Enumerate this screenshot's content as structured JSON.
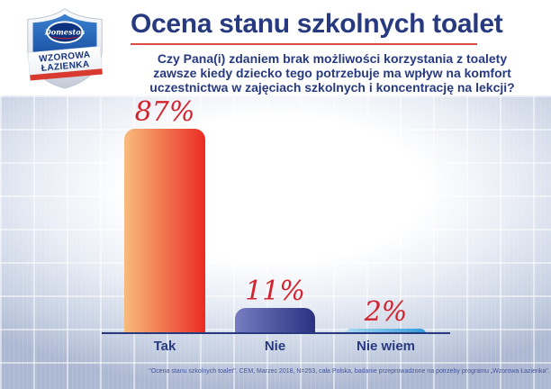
{
  "logo": {
    "brand": "Domestos",
    "program_line1": "WZOROWA",
    "program_line2": "ŁAZIENKA"
  },
  "header": {
    "title": "Ocena stanu szkolnych toalet",
    "subtitle_lines": [
      "Czy Pana(i) zdaniem brak możliwości korzystania z toalety",
      "zawsze kiedy dziecko tego potrzebuje ma wpływ na komfort",
      "uczestnictwa w zajęciach szkolnych i koncentrację na lekcji?"
    ]
  },
  "chart_data": {
    "type": "bar",
    "title": "Ocena stanu szkolnych toalet",
    "categories": [
      "Tak",
      "Nie",
      "Nie wiem"
    ],
    "values": [
      87,
      11,
      2
    ],
    "value_labels": [
      "87%",
      "11%",
      "2%"
    ],
    "xlabel": "",
    "ylabel": "",
    "ylim": [
      0,
      100
    ],
    "grid": false,
    "legend": false,
    "bar_colors": [
      {
        "from": "#f8bb7d",
        "to": "#ea2c23"
      },
      {
        "from": "#767dc1",
        "to": "#2a3180"
      },
      {
        "from": "#a5d9f3",
        "to": "#2f9ad7"
      }
    ],
    "value_label_color": "#d2232e",
    "category_label_color": "#273a80",
    "axis_color": "#273a80"
  },
  "footer": {
    "source": "\"Ocena stanu szkolnych toalet\", CEM, Marzec 2018, N=253, cała Polska, badanie przeprowadzone na potrzeby programu „Wzorowa Łazienka\"."
  },
  "theme": {
    "navy": "#273a80",
    "accent_red": "#dc4a41",
    "tile_background": "#b6c1d7"
  }
}
